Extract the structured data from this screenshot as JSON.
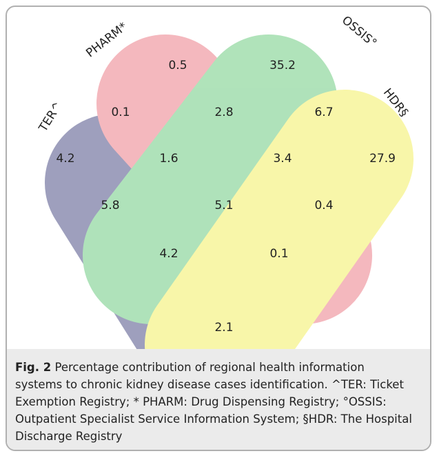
{
  "sets": [
    {
      "label": "TER^"
    },
    {
      "label": "PHARM*"
    },
    {
      "label": "OSSIS°"
    },
    {
      "label": "HDR§"
    }
  ],
  "regions": [
    "0.5",
    "35.2",
    "0.1",
    "2.8",
    "6.7",
    "4.2",
    "1.6",
    "3.4",
    "27.9",
    "5.8",
    "5.1",
    "0.4",
    "4.2",
    "0.1",
    "2.1"
  ],
  "caption": {
    "label": "Fig. 2",
    "lines": [
      "Percentage contribution of regional health information",
      "systems to chronic kidney disease cases identification. ^TER: Ticket",
      "Exemption Registry; * PHARM: Drug Dispensing Registry; °OSSIS:",
      "Outpatient Specialist Service Information System; §HDR: The Hospital",
      "Discharge Registry"
    ]
  }
}
